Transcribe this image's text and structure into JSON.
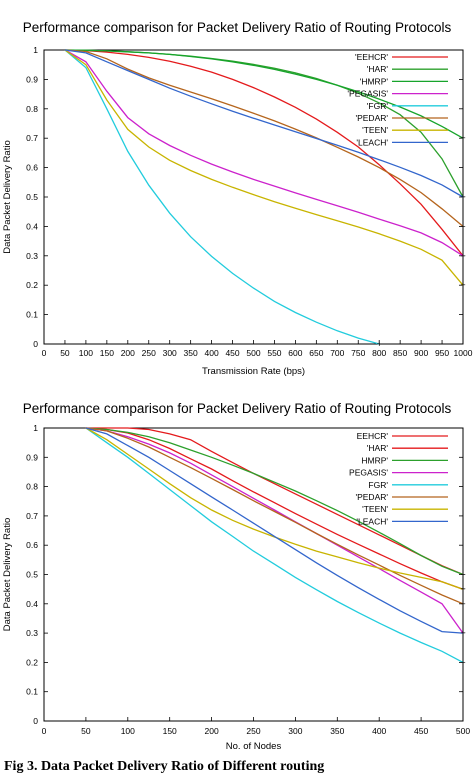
{
  "chart_data": [
    {
      "type": "line",
      "title": "Performance comparison for Packet Delivery Ratio of Routing Protocols",
      "xlabel": "Transmission Rate (bps)",
      "ylabel": "Data Packet Delivery Ratio",
      "xlim": [
        0,
        1000
      ],
      "ylim": [
        0,
        1
      ],
      "xticks": [
        0,
        50,
        100,
        150,
        200,
        250,
        300,
        350,
        400,
        450,
        500,
        550,
        600,
        650,
        700,
        750,
        800,
        850,
        900,
        950,
        1000
      ],
      "yticks": [
        0,
        0.1,
        0.2,
        0.3,
        0.4,
        0.5,
        0.6,
        0.7,
        0.8,
        0.9,
        1
      ],
      "ytick_labels": [
        "0",
        "0.1",
        "0.2",
        "0.3",
        "0.4",
        "0.5",
        "0.6",
        "0.7",
        "0.8",
        "0.9",
        "1"
      ],
      "grid": false,
      "legend_position": "top-right",
      "series": [
        {
          "name": "'EEHCR'",
          "color": "#e41a1c",
          "x": [
            50,
            100,
            150,
            200,
            250,
            300,
            350,
            400,
            450,
            500,
            550,
            600,
            650,
            700,
            750,
            800,
            850,
            900,
            950,
            1000
          ],
          "y": [
            1,
            0.998,
            0.993,
            0.985,
            0.975,
            0.962,
            0.945,
            0.925,
            0.9,
            0.872,
            0.84,
            0.805,
            0.765,
            0.72,
            0.67,
            0.61,
            0.545,
            0.475,
            0.39,
            0.3
          ]
        },
        {
          "name": "'HAR'",
          "color": "#2ca02c",
          "x": [
            50,
            100,
            150,
            200,
            250,
            300,
            350,
            400,
            450,
            500,
            550,
            600,
            650,
            700,
            750,
            800,
            850,
            900,
            950,
            1000
          ],
          "y": [
            1,
            0.999,
            0.997,
            0.994,
            0.99,
            0.985,
            0.979,
            0.971,
            0.962,
            0.951,
            0.938,
            0.922,
            0.903,
            0.88,
            0.853,
            0.82,
            0.78,
            0.72,
            0.63,
            0.5
          ]
        },
        {
          "name": "'HMRP'",
          "color": "#17a42b",
          "x": [
            50,
            100,
            150,
            200,
            250,
            300,
            350,
            400,
            450,
            500,
            550,
            600,
            650,
            700,
            750,
            800,
            850,
            900,
            950,
            1000
          ],
          "y": [
            1,
            0.999,
            0.997,
            0.994,
            0.99,
            0.985,
            0.978,
            0.97,
            0.96,
            0.948,
            0.934,
            0.918,
            0.9,
            0.88,
            0.858,
            0.833,
            0.806,
            0.776,
            0.74,
            0.7
          ]
        },
        {
          "name": "'PEGASIS'",
          "color": "#cc22cc",
          "x": [
            50,
            100,
            150,
            200,
            250,
            300,
            350,
            400,
            450,
            500,
            550,
            600,
            650,
            700,
            750,
            800,
            850,
            900,
            950,
            1000
          ],
          "y": [
            1,
            0.96,
            0.86,
            0.77,
            0.715,
            0.675,
            0.642,
            0.612,
            0.585,
            0.56,
            0.537,
            0.514,
            0.492,
            0.47,
            0.448,
            0.425,
            0.402,
            0.378,
            0.345,
            0.3
          ]
        },
        {
          "name": "'FGR'",
          "color": "#22ccdd",
          "x": [
            50,
            100,
            150,
            200,
            250,
            300,
            350,
            400,
            450,
            500,
            550,
            600,
            650,
            700,
            750,
            800
          ],
          "y": [
            1,
            0.94,
            0.8,
            0.655,
            0.54,
            0.445,
            0.365,
            0.298,
            0.24,
            0.19,
            0.145,
            0.107,
            0.074,
            0.045,
            0.02,
            0
          ]
        },
        {
          "name": "'PEDAR'",
          "color": "#b5651d",
          "x": [
            50,
            100,
            150,
            200,
            250,
            300,
            350,
            400,
            450,
            500,
            550,
            600,
            650,
            700,
            750,
            800,
            850,
            900,
            950,
            1000
          ],
          "y": [
            1,
            0.995,
            0.97,
            0.935,
            0.905,
            0.88,
            0.857,
            0.834,
            0.81,
            0.785,
            0.759,
            0.731,
            0.701,
            0.669,
            0.636,
            0.6,
            0.56,
            0.515,
            0.46,
            0.4
          ]
        },
        {
          "name": "'TEEN'",
          "color": "#c8b400",
          "x": [
            50,
            100,
            150,
            200,
            250,
            300,
            350,
            400,
            450,
            500,
            550,
            600,
            650,
            700,
            750,
            800,
            850,
            900,
            950,
            1000
          ],
          "y": [
            1,
            0.95,
            0.83,
            0.73,
            0.67,
            0.625,
            0.59,
            0.56,
            0.533,
            0.508,
            0.484,
            0.462,
            0.44,
            0.419,
            0.398,
            0.375,
            0.35,
            0.322,
            0.285,
            0.2
          ]
        },
        {
          "name": "'LEACH'",
          "color": "#3366cc",
          "x": [
            50,
            100,
            150,
            200,
            250,
            300,
            350,
            400,
            450,
            500,
            550,
            600,
            650,
            700,
            750,
            800,
            850,
            900,
            950,
            1000
          ],
          "y": [
            1,
            0.99,
            0.96,
            0.93,
            0.9,
            0.87,
            0.843,
            0.817,
            0.792,
            0.768,
            0.745,
            0.722,
            0.699,
            0.676,
            0.652,
            0.627,
            0.601,
            0.573,
            0.541,
            0.5
          ]
        }
      ]
    },
    {
      "type": "line",
      "title": "Performance comparison for Packet Delivery Ratio of Routing Protocols",
      "xlabel": "No. of Nodes",
      "ylabel": "Data Packet Delivery Ratio",
      "xlim": [
        0,
        500
      ],
      "ylim": [
        0,
        1
      ],
      "xticks": [
        0,
        50,
        100,
        150,
        200,
        250,
        300,
        350,
        400,
        450,
        500
      ],
      "yticks": [
        0,
        0.1,
        0.2,
        0.3,
        0.4,
        0.5,
        0.6,
        0.7,
        0.8,
        0.9,
        1
      ],
      "ytick_labels": [
        "0",
        "0.1",
        "0.2",
        "0.3",
        "0.4",
        "0.5",
        "0.6",
        "0.7",
        "0.8",
        "0.9",
        "1"
      ],
      "grid": false,
      "legend_position": "top-right",
      "series": [
        {
          "name": "EEHCR'",
          "color": "#e41a1c",
          "x": [
            50,
            75,
            100,
            125,
            150,
            175,
            200,
            225,
            250,
            275,
            300,
            325,
            350,
            375,
            400,
            425,
            450,
            475,
            500
          ],
          "y": [
            1,
            1,
            1,
            0.995,
            0.98,
            0.96,
            0.92,
            0.882,
            0.845,
            0.81,
            0.775,
            0.74,
            0.705,
            0.67,
            0.635,
            0.6,
            0.565,
            0.53,
            0.5
          ]
        },
        {
          "name": "'HAR'",
          "color": "#e41a1c",
          "x": [
            50,
            75,
            100,
            125,
            150,
            175,
            200,
            225,
            250,
            275,
            300,
            325,
            350,
            375,
            400,
            425,
            450,
            475,
            500
          ],
          "y": [
            1,
            0.995,
            0.983,
            0.96,
            0.93,
            0.895,
            0.86,
            0.82,
            0.782,
            0.745,
            0.708,
            0.672,
            0.637,
            0.603,
            0.57,
            0.537,
            0.505,
            0.475,
            0.45
          ]
        },
        {
          "name": "HMRP'",
          "color": "#2ca02c",
          "x": [
            50,
            75,
            100,
            125,
            150,
            175,
            200,
            225,
            250,
            275,
            300,
            325,
            350,
            375,
            400,
            425,
            450,
            475,
            500
          ],
          "y": [
            1,
            0.995,
            0.985,
            0.97,
            0.95,
            0.925,
            0.9,
            0.873,
            0.845,
            0.815,
            0.785,
            0.752,
            0.718,
            0.682,
            0.644,
            0.605,
            0.565,
            0.528,
            0.5
          ]
        },
        {
          "name": "PEGASIS'",
          "color": "#cc22cc",
          "x": [
            50,
            75,
            100,
            125,
            150,
            175,
            200,
            225,
            250,
            275,
            300,
            325,
            350,
            375,
            400,
            425,
            450,
            475,
            500
          ],
          "y": [
            1,
            0.99,
            0.97,
            0.945,
            0.915,
            0.88,
            0.84,
            0.8,
            0.76,
            0.72,
            0.68,
            0.64,
            0.6,
            0.56,
            0.52,
            0.48,
            0.44,
            0.4,
            0.3
          ]
        },
        {
          "name": "FGR'",
          "color": "#22ccdd",
          "x": [
            50,
            75,
            100,
            125,
            150,
            175,
            200,
            225,
            250,
            275,
            300,
            325,
            350,
            375,
            400,
            425,
            450,
            475,
            500
          ],
          "y": [
            1,
            0.95,
            0.9,
            0.845,
            0.79,
            0.735,
            0.68,
            0.63,
            0.58,
            0.535,
            0.49,
            0.448,
            0.408,
            0.37,
            0.334,
            0.3,
            0.268,
            0.238,
            0.2
          ]
        },
        {
          "name": "'PEDAR'",
          "color": "#b5651d",
          "x": [
            50,
            75,
            100,
            125,
            150,
            175,
            200,
            225,
            250,
            275,
            300,
            325,
            350,
            375,
            400,
            425,
            450,
            475,
            500
          ],
          "y": [
            1,
            0.99,
            0.965,
            0.935,
            0.9,
            0.865,
            0.828,
            0.79,
            0.752,
            0.715,
            0.678,
            0.64,
            0.603,
            0.567,
            0.532,
            0.497,
            0.463,
            0.43,
            0.4
          ]
        },
        {
          "name": "'TEEN'",
          "color": "#c8b400",
          "x": [
            50,
            75,
            100,
            125,
            150,
            175,
            200,
            225,
            250,
            275,
            300,
            325,
            350,
            375,
            400,
            425,
            450,
            475,
            500
          ],
          "y": [
            1,
            0.96,
            0.91,
            0.86,
            0.81,
            0.762,
            0.72,
            0.685,
            0.655,
            0.628,
            0.603,
            0.58,
            0.56,
            0.54,
            0.522,
            0.505,
            0.49,
            0.475,
            0.45
          ]
        },
        {
          "name": "'LEACH'",
          "color": "#3366cc",
          "x": [
            50,
            75,
            100,
            125,
            150,
            175,
            200,
            225,
            250,
            275,
            300,
            325,
            350,
            375,
            400,
            425,
            450,
            475,
            500
          ],
          "y": [
            1,
            0.98,
            0.94,
            0.9,
            0.855,
            0.81,
            0.765,
            0.72,
            0.675,
            0.63,
            0.585,
            0.54,
            0.497,
            0.455,
            0.415,
            0.376,
            0.34,
            0.305,
            0.3
          ]
        }
      ]
    }
  ],
  "caption": "Fig 3. Data Packet Delivery Ratio of Different routing"
}
